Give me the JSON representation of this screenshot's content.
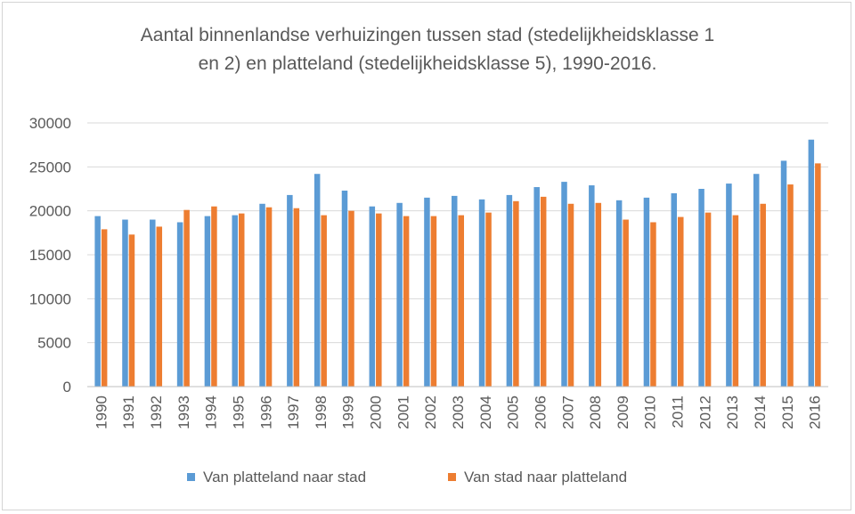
{
  "chart_data": {
    "type": "bar",
    "title_line1": "Aantal binnenlandse verhuizingen tussen stad (stedelijkheidsklasse 1",
    "title_line2": "en 2) en platteland (stedelijkheidsklasse 5), 1990-2016.",
    "xlabel": "",
    "ylabel": "",
    "ylim": [
      0,
      30000
    ],
    "yticks": [
      0,
      5000,
      10000,
      15000,
      20000,
      25000,
      30000
    ],
    "grid": true,
    "legend_position": "bottom",
    "categories": [
      "1990",
      "1991",
      "1992",
      "1993",
      "1994",
      "1995",
      "1996",
      "1997",
      "1998",
      "1999",
      "2000",
      "2001",
      "2002",
      "2003",
      "2004",
      "2005",
      "2006",
      "2007",
      "2008",
      "2009",
      "2010",
      "2011",
      "2012",
      "2013",
      "2014",
      "2015",
      "2016"
    ],
    "series": [
      {
        "name": "Van platteland naar stad",
        "color": "#5b9bd5",
        "values": [
          19400,
          19000,
          19000,
          18700,
          19400,
          19500,
          20800,
          21800,
          24200,
          22300,
          20500,
          20900,
          21500,
          21700,
          21300,
          21800,
          22700,
          23300,
          22900,
          21200,
          21500,
          22000,
          22500,
          23100,
          24200,
          25700,
          28100
        ]
      },
      {
        "name": "Van stad naar platteland",
        "color": "#ed7d31",
        "values": [
          17900,
          17300,
          18200,
          20100,
          20500,
          19700,
          20400,
          20300,
          19500,
          20000,
          19700,
          19400,
          19400,
          19500,
          19800,
          21100,
          21600,
          20800,
          20900,
          19000,
          18700,
          19300,
          19800,
          19500,
          20800,
          23000,
          25400
        ]
      }
    ]
  }
}
